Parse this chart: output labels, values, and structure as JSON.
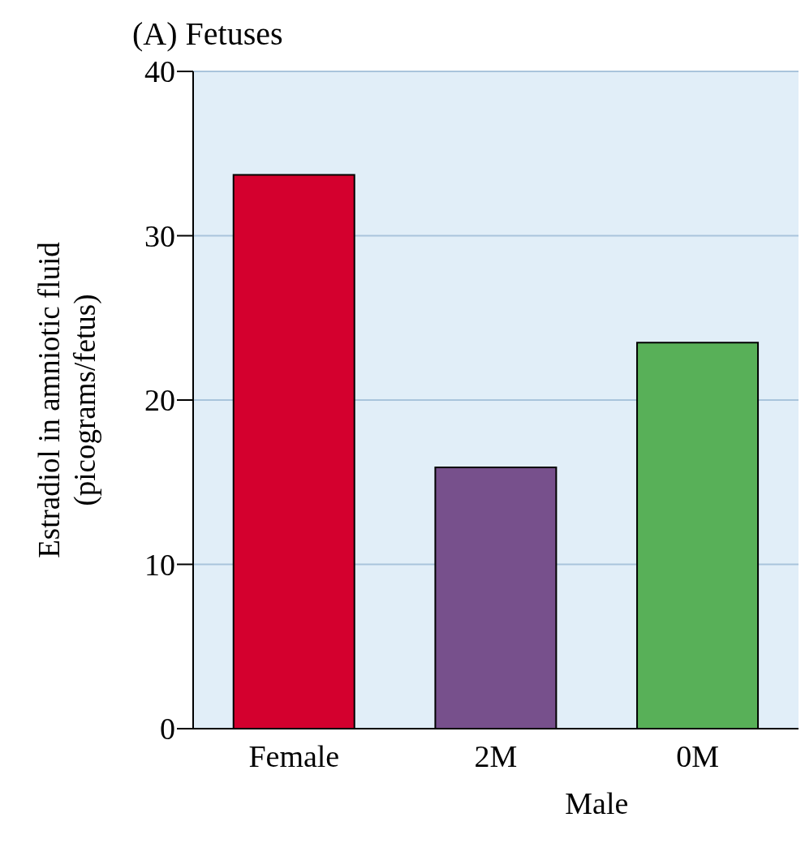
{
  "chart_data": {
    "type": "bar",
    "title": "(A)  Fetuses",
    "ylabel": "Estradiol in amniotic fluid (picograms/fetus)",
    "categories": [
      "Female",
      "2M",
      "0M"
    ],
    "values": [
      33.7,
      15.9,
      23.5
    ],
    "colors": [
      "#d4002e",
      "#77508c",
      "#58b058"
    ],
    "ylim": [
      0,
      40
    ],
    "yticks": [
      0,
      10,
      20,
      30,
      40
    ],
    "grid": "y",
    "annotations": [
      "Male"
    ]
  }
}
